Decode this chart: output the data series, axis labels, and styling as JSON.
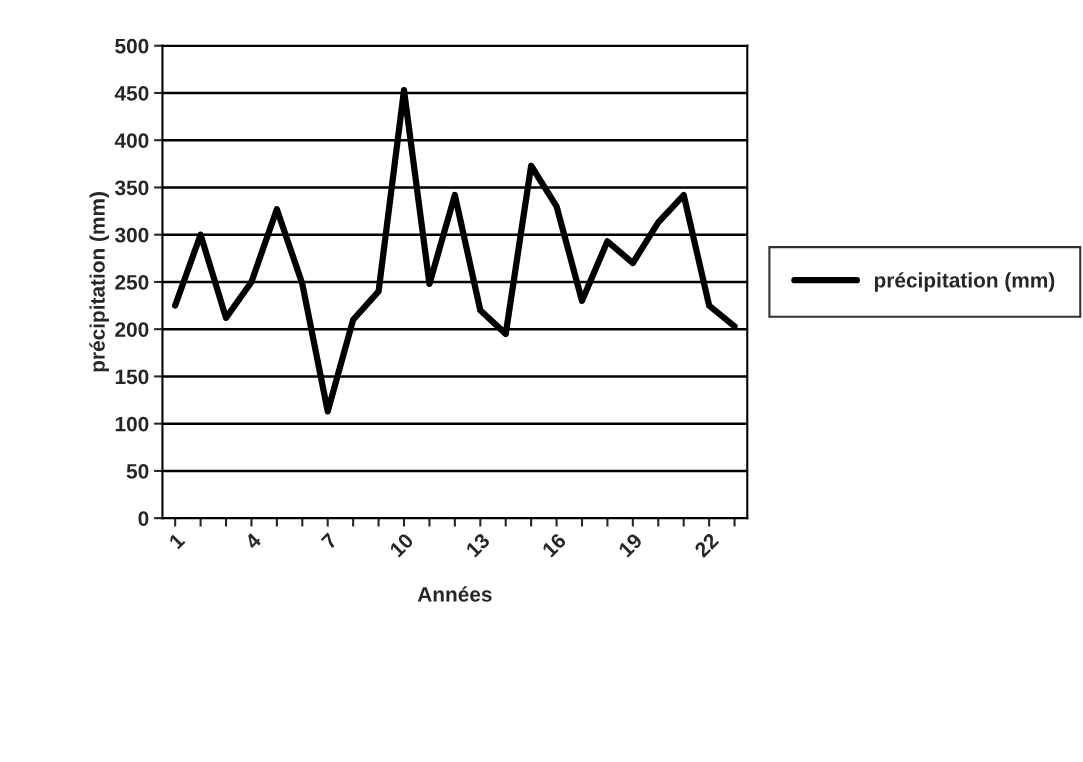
{
  "chart_data": {
    "type": "line",
    "xlabel": "Années",
    "ylabel": "précipitation (mm)",
    "categories": [
      "1",
      null,
      null,
      "4",
      null,
      null,
      "7",
      null,
      null,
      "10",
      null,
      null,
      "13",
      null,
      null,
      "16",
      null,
      null,
      "19",
      null,
      null,
      "22",
      null
    ],
    "series": [
      {
        "name": "précipitation (mm)",
        "color": "#000000",
        "values": [
          225,
          300,
          212,
          250,
          327,
          248,
          113,
          210,
          240,
          453,
          248,
          342,
          220,
          195,
          373,
          330,
          230,
          293,
          270,
          313,
          342,
          225,
          203
        ]
      }
    ],
    "ylim": [
      0,
      500
    ],
    "yticks": [
      0,
      50,
      100,
      150,
      200,
      250,
      300,
      350,
      400,
      450,
      500
    ],
    "grid": "y",
    "legend": "right",
    "marker": "none",
    "line_style": "solid"
  }
}
